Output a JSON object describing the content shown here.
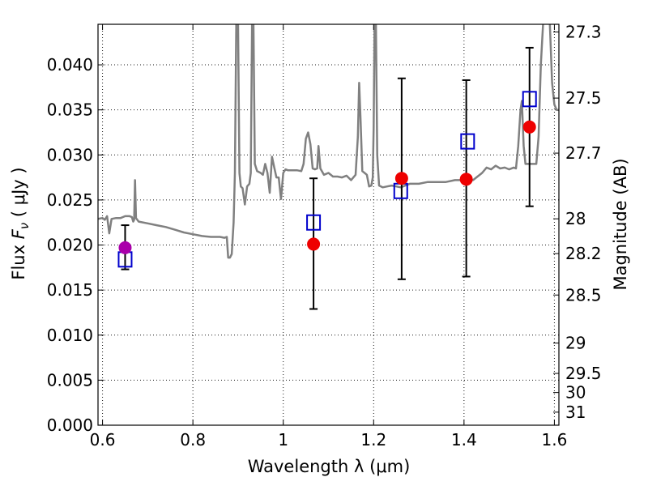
{
  "chart_data": {
    "type": "scatter",
    "xlabel": "Wavelength  λ (μm)",
    "ylabel": "Flux  F_ν  ( μJy )",
    "ylabel_parts": {
      "pre": "Flux  ",
      "sym": "F",
      "sub": "ν",
      "post": "  ( μJy )"
    },
    "y2label": "Magnitude (AB)",
    "xlim": [
      0.59,
      1.61
    ],
    "ylim": [
      0.0,
      0.0445
    ],
    "grid": true,
    "x_ticks": [
      {
        "value": 0.6,
        "label": "0.6"
      },
      {
        "value": 0.8,
        "label": "0.8"
      },
      {
        "value": 1.0,
        "label": "1"
      },
      {
        "value": 1.2,
        "label": "1.2"
      },
      {
        "value": 1.4,
        "label": "1.4"
      },
      {
        "value": 1.6,
        "label": "1.6"
      }
    ],
    "y_ticks": [
      {
        "value": 0.0,
        "label": "0.000"
      },
      {
        "value": 0.005,
        "label": "0.005"
      },
      {
        "value": 0.01,
        "label": "0.010"
      },
      {
        "value": 0.015,
        "label": "0.015"
      },
      {
        "value": 0.02,
        "label": "0.020"
      },
      {
        "value": 0.025,
        "label": "0.025"
      },
      {
        "value": 0.03,
        "label": "0.030"
      },
      {
        "value": 0.035,
        "label": "0.035"
      },
      {
        "value": 0.04,
        "label": "0.040"
      }
    ],
    "y2_ticks": [
      {
        "flux": 0.04365,
        "label": "27.3"
      },
      {
        "flux": 0.03631,
        "label": "27.5"
      },
      {
        "flux": 0.0302,
        "label": "27.7"
      },
      {
        "flux": 0.02291,
        "label": "28"
      },
      {
        "flux": 0.01905,
        "label": "28.2"
      },
      {
        "flux": 0.01445,
        "label": "28.5"
      },
      {
        "flux": 0.00912,
        "label": "29"
      },
      {
        "flux": 0.00575,
        "label": "29.5"
      },
      {
        "flux": 0.00363,
        "label": "30"
      },
      {
        "flux": 0.00145,
        "label": "31"
      }
    ],
    "series": [
      {
        "kind": "model-spectrum",
        "color": "#808080",
        "points": [
          [
            0.59,
            0.0229
          ],
          [
            0.6,
            0.023
          ],
          [
            0.605,
            0.0228
          ],
          [
            0.61,
            0.0232
          ],
          [
            0.615,
            0.0213
          ],
          [
            0.62,
            0.0229
          ],
          [
            0.63,
            0.023
          ],
          [
            0.64,
            0.023
          ],
          [
            0.65,
            0.0232
          ],
          [
            0.66,
            0.0232
          ],
          [
            0.665,
            0.0231
          ],
          [
            0.668,
            0.0226
          ],
          [
            0.67,
            0.0228
          ],
          [
            0.672,
            0.0272
          ],
          [
            0.674,
            0.023
          ],
          [
            0.68,
            0.0226
          ],
          [
            0.7,
            0.0224
          ],
          [
            0.72,
            0.0222
          ],
          [
            0.74,
            0.022
          ],
          [
            0.76,
            0.0217
          ],
          [
            0.78,
            0.0214
          ],
          [
            0.8,
            0.0212
          ],
          [
            0.82,
            0.021
          ],
          [
            0.84,
            0.0209
          ],
          [
            0.86,
            0.0209
          ],
          [
            0.87,
            0.0208
          ],
          [
            0.875,
            0.0209
          ],
          [
            0.878,
            0.0186
          ],
          [
            0.882,
            0.0186
          ],
          [
            0.886,
            0.019
          ],
          [
            0.89,
            0.0225
          ],
          [
            0.893,
            0.028
          ],
          [
            0.896,
            0.0446
          ],
          [
            0.9,
            0.0446
          ],
          [
            0.903,
            0.028
          ],
          [
            0.906,
            0.0265
          ],
          [
            0.91,
            0.0263
          ],
          [
            0.915,
            0.0245
          ],
          [
            0.92,
            0.0265
          ],
          [
            0.925,
            0.0268
          ],
          [
            0.928,
            0.028
          ],
          [
            0.931,
            0.0446
          ],
          [
            0.934,
            0.0446
          ],
          [
            0.937,
            0.029
          ],
          [
            0.942,
            0.0282
          ],
          [
            0.95,
            0.028
          ],
          [
            0.955,
            0.0278
          ],
          [
            0.96,
            0.029
          ],
          [
            0.965,
            0.028
          ],
          [
            0.97,
            0.0258
          ],
          [
            0.975,
            0.0298
          ],
          [
            0.98,
            0.0286
          ],
          [
            0.985,
            0.0275
          ],
          [
            0.99,
            0.0275
          ],
          [
            0.995,
            0.0251
          ],
          [
            1.0,
            0.028
          ],
          [
            1.005,
            0.0284
          ],
          [
            1.01,
            0.0283
          ],
          [
            1.03,
            0.0283
          ],
          [
            1.04,
            0.0282
          ],
          [
            1.045,
            0.029
          ],
          [
            1.05,
            0.0318
          ],
          [
            1.055,
            0.0325
          ],
          [
            1.06,
            0.0312
          ],
          [
            1.065,
            0.0285
          ],
          [
            1.07,
            0.0284
          ],
          [
            1.075,
            0.0285
          ],
          [
            1.078,
            0.031
          ],
          [
            1.082,
            0.0285
          ],
          [
            1.09,
            0.0278
          ],
          [
            1.1,
            0.028
          ],
          [
            1.11,
            0.0276
          ],
          [
            1.12,
            0.0276
          ],
          [
            1.13,
            0.0275
          ],
          [
            1.14,
            0.0277
          ],
          [
            1.15,
            0.0272
          ],
          [
            1.16,
            0.0278
          ],
          [
            1.165,
            0.032
          ],
          [
            1.168,
            0.038
          ],
          [
            1.171,
            0.034
          ],
          [
            1.175,
            0.0282
          ],
          [
            1.18,
            0.028
          ],
          [
            1.185,
            0.0278
          ],
          [
            1.19,
            0.0265
          ],
          [
            1.195,
            0.0266
          ],
          [
            1.198,
            0.0275
          ],
          [
            1.2,
            0.033
          ],
          [
            1.202,
            0.0446
          ],
          [
            1.205,
            0.0446
          ],
          [
            1.208,
            0.03
          ],
          [
            1.212,
            0.0266
          ],
          [
            1.22,
            0.0264
          ],
          [
            1.23,
            0.0265
          ],
          [
            1.24,
            0.0266
          ],
          [
            1.25,
            0.0265
          ],
          [
            1.26,
            0.0264
          ],
          [
            1.27,
            0.0266
          ],
          [
            1.28,
            0.0268
          ],
          [
            1.3,
            0.0268
          ],
          [
            1.32,
            0.027
          ],
          [
            1.34,
            0.027
          ],
          [
            1.36,
            0.027
          ],
          [
            1.38,
            0.0272
          ],
          [
            1.4,
            0.0272
          ],
          [
            1.42,
            0.0272
          ],
          [
            1.44,
            0.028
          ],
          [
            1.45,
            0.0286
          ],
          [
            1.46,
            0.0284
          ],
          [
            1.47,
            0.0288
          ],
          [
            1.48,
            0.0285
          ],
          [
            1.49,
            0.0286
          ],
          [
            1.5,
            0.0284
          ],
          [
            1.51,
            0.0286
          ],
          [
            1.515,
            0.0285
          ],
          [
            1.52,
            0.031
          ],
          [
            1.525,
            0.035
          ],
          [
            1.528,
            0.036
          ],
          [
            1.532,
            0.031
          ],
          [
            1.536,
            0.029
          ],
          [
            1.55,
            0.029
          ],
          [
            1.56,
            0.029
          ],
          [
            1.565,
            0.032
          ],
          [
            1.57,
            0.04
          ],
          [
            1.575,
            0.0446
          ],
          [
            1.59,
            0.0446
          ],
          [
            1.595,
            0.038
          ],
          [
            1.6,
            0.0356
          ],
          [
            1.605,
            0.035
          ],
          [
            1.61,
            0.035
          ]
        ]
      },
      {
        "kind": "model-photometry",
        "marker": "open-square",
        "color": "#0000cc",
        "points": [
          [
            0.65,
            0.0184
          ],
          [
            1.067,
            0.0225
          ],
          [
            1.26,
            0.026
          ],
          [
            1.408,
            0.0315
          ],
          [
            1.545,
            0.0362
          ]
        ]
      },
      {
        "kind": "observed-photometry",
        "marker": "filled-circle",
        "color": "#ee0000",
        "points": [
          {
            "x": 1.067,
            "y": 0.0201,
            "ylo": 0.0129,
            "yhi": 0.0274
          },
          {
            "x": 1.262,
            "y": 0.0274,
            "ylo": 0.0162,
            "yhi": 0.0385
          },
          {
            "x": 1.405,
            "y": 0.0273,
            "ylo": 0.0165,
            "yhi": 0.0383
          },
          {
            "x": 1.545,
            "y": 0.0331,
            "ylo": 0.0243,
            "yhi": 0.0419
          }
        ]
      },
      {
        "kind": "observed-photometry-optical",
        "marker": "filled-circle",
        "color": "#aa00aa",
        "points": [
          {
            "x": 0.65,
            "y": 0.0197,
            "ylo": 0.0173,
            "yhi": 0.0222
          }
        ]
      }
    ]
  }
}
